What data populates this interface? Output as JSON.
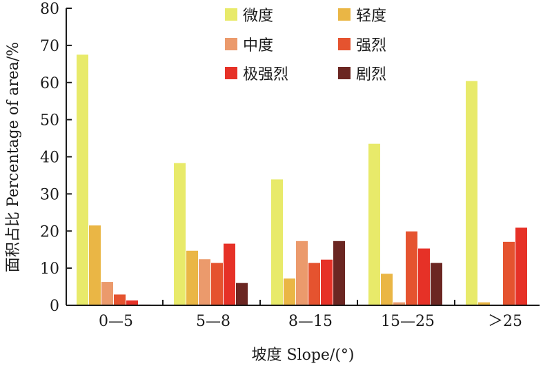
{
  "chart_data": {
    "type": "bar",
    "xlabel": "坡度 Slope/(°)",
    "ylabel": "面积占比 Percentage of area/%",
    "ylim": [
      0,
      80
    ],
    "yticks": [
      0,
      10,
      20,
      30,
      40,
      50,
      60,
      70,
      80
    ],
    "categories": [
      "0—5",
      "5—8",
      "8—15",
      "15—25",
      "＞25"
    ],
    "legend_position": "top-center",
    "legend_columns": 2,
    "series": [
      {
        "name": "微度",
        "color": "#e8ea6a",
        "values": [
          67.5,
          38.3,
          33.9,
          43.5,
          60.4
        ]
      },
      {
        "name": "轻度",
        "color": "#eab645",
        "values": [
          21.5,
          14.7,
          7.2,
          8.5,
          0.8
        ]
      },
      {
        "name": "中度",
        "color": "#eb9a6c",
        "values": [
          6.3,
          12.4,
          17.3,
          0.8,
          0
        ]
      },
      {
        "name": "强烈",
        "color": "#e5532f",
        "values": [
          2.9,
          11.4,
          11.4,
          19.9,
          17.1
        ]
      },
      {
        "name": "极强烈",
        "color": "#e63127",
        "values": [
          1.3,
          16.6,
          12.3,
          15.3,
          20.9
        ]
      },
      {
        "name": "剧烈",
        "color": "#6b2622",
        "values": [
          0.2,
          6.0,
          17.3,
          11.4,
          0
        ]
      }
    ]
  }
}
